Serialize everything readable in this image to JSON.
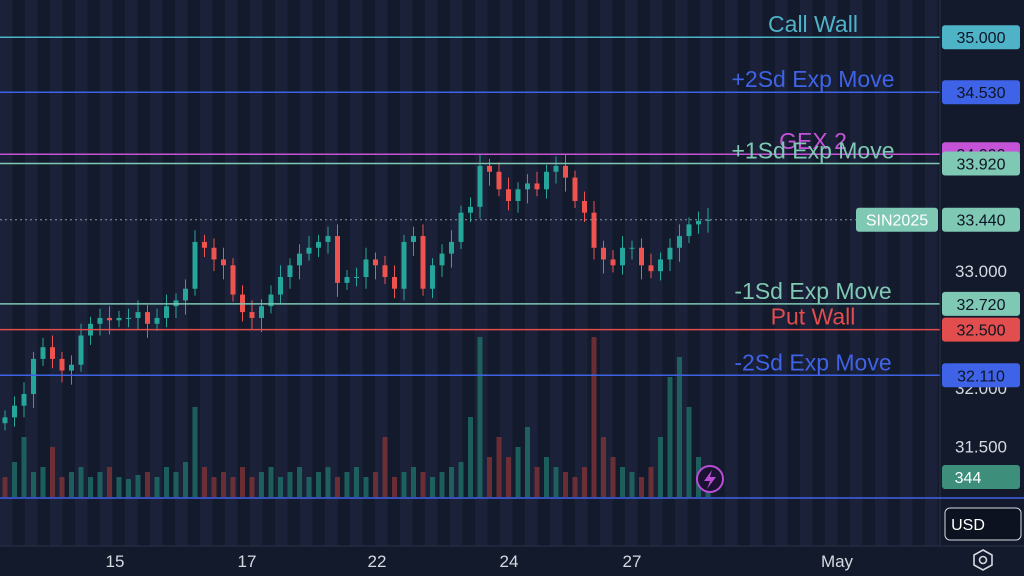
{
  "chart_data": {
    "type": "candlestick",
    "symbol": "SIN2025",
    "last_price": "33.440",
    "currency": "USD",
    "volume_label": "344",
    "ylim": [
      31.3,
      35.25
    ],
    "y_ticks": [
      "33.000",
      "32.000",
      "31.500"
    ],
    "x_ticks": [
      "15",
      "17",
      "22",
      "24",
      "27",
      "May"
    ],
    "levels": [
      {
        "name": "Call Wall",
        "value": 35.0,
        "tag": "35.000",
        "color": "#4fb3c8"
      },
      {
        "name": "+2Sd Exp Move",
        "value": 34.53,
        "tag": "34.530",
        "color": "#3f63e6"
      },
      {
        "name": "GEX 2",
        "value": 34.0,
        "tag": "34.000",
        "color": "#c553d8"
      },
      {
        "name": "+1Sd Exp Move",
        "value": 33.92,
        "tag": "33.920",
        "color": "#7ec8b4"
      },
      {
        "name": "-1Sd Exp Move",
        "value": 32.72,
        "tag": "32.720",
        "color": "#7ec8b4"
      },
      {
        "name": "Put Wall",
        "value": 32.5,
        "tag": "32.500",
        "color": "#e24d4d"
      },
      {
        "name": "-2Sd Exp Move",
        "value": 32.11,
        "tag": "32.110",
        "color": "#3f63e6"
      }
    ],
    "close_series": [
      31.75,
      31.85,
      31.95,
      32.25,
      32.35,
      32.25,
      32.15,
      32.2,
      32.45,
      32.55,
      32.6,
      32.58,
      32.6,
      32.6,
      32.65,
      32.55,
      32.6,
      32.7,
      32.75,
      32.85,
      33.25,
      33.2,
      33.1,
      33.05,
      32.8,
      32.65,
      32.6,
      32.7,
      32.8,
      32.95,
      33.05,
      33.15,
      33.2,
      33.25,
      33.3,
      32.9,
      32.95,
      32.95,
      33.1,
      33.05,
      32.95,
      32.85,
      33.25,
      33.3,
      32.85,
      33.05,
      33.15,
      33.25,
      33.5,
      33.55,
      33.9,
      33.85,
      33.7,
      33.6,
      33.7,
      33.75,
      33.7,
      33.85,
      33.9,
      33.8,
      33.6,
      33.5,
      33.2,
      33.1,
      33.05,
      33.2,
      33.2,
      33.05,
      33.0,
      33.1,
      33.2,
      33.3,
      33.4,
      33.43,
      33.44
    ],
    "volume_series": [
      20,
      35,
      60,
      25,
      30,
      50,
      20,
      25,
      30,
      20,
      25,
      30,
      20,
      18,
      22,
      25,
      20,
      30,
      25,
      35,
      90,
      30,
      20,
      25,
      20,
      30,
      20,
      25,
      30,
      20,
      25,
      30,
      20,
      25,
      30,
      20,
      25,
      30,
      20,
      25,
      60,
      20,
      25,
      30,
      25,
      20,
      25,
      30,
      35,
      80,
      160,
      40,
      60,
      40,
      50,
      70,
      30,
      40,
      30,
      25,
      20,
      30,
      160,
      60,
      40,
      30,
      25,
      20,
      30,
      60,
      120,
      140,
      90,
      40,
      30
    ]
  }
}
